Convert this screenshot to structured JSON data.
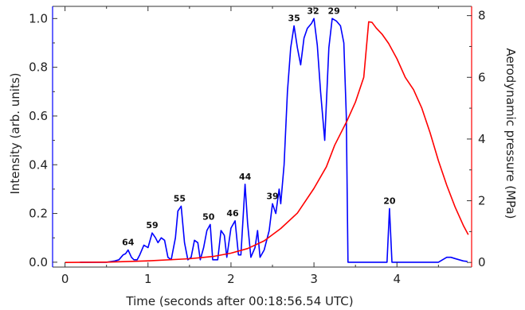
{
  "chart_data": {
    "type": "line",
    "xlabel": "Time (seconds after 00:18:56.54 UTC)",
    "ylabel_left": "Intensity (arb. units)",
    "ylabel_right": "Aerodynamic pressure (MPa)",
    "xlim": [
      -0.15,
      4.9
    ],
    "ylim_left": [
      -0.02,
      1.05
    ],
    "ylim_right": [
      -0.15,
      8.3
    ],
    "x_ticks": [
      0,
      1,
      2,
      3,
      4
    ],
    "x_minor_ticks": [
      0.5,
      1.5,
      2.5,
      3.5,
      4.5
    ],
    "y_left_ticks": [
      0.0,
      0.2,
      0.4,
      0.6,
      0.8,
      1.0
    ],
    "y_left_tick_labels": [
      "0.0",
      "0.2",
      "0.4",
      "0.6",
      "0.8",
      "1.0"
    ],
    "y_right_ticks": [
      0,
      2,
      4,
      6,
      8
    ],
    "y_right_tick_labels": [
      "0",
      "2",
      "4",
      "6",
      "8"
    ],
    "grid": false,
    "series": [
      {
        "axis": "left",
        "color": "#0000ff",
        "points": [
          [
            0.18,
            0.0
          ],
          [
            0.5,
            0.0
          ],
          [
            0.6,
            0.005
          ],
          [
            0.65,
            0.01
          ],
          [
            0.7,
            0.03
          ],
          [
            0.73,
            0.035
          ],
          [
            0.76,
            0.05
          ],
          [
            0.8,
            0.02
          ],
          [
            0.83,
            0.01
          ],
          [
            0.87,
            0.01
          ],
          [
            0.9,
            0.03
          ],
          [
            0.95,
            0.07
          ],
          [
            1.0,
            0.06
          ],
          [
            1.05,
            0.12
          ],
          [
            1.09,
            0.1
          ],
          [
            1.12,
            0.08
          ],
          [
            1.16,
            0.1
          ],
          [
            1.2,
            0.09
          ],
          [
            1.24,
            0.02
          ],
          [
            1.28,
            0.01
          ],
          [
            1.33,
            0.1
          ],
          [
            1.36,
            0.21
          ],
          [
            1.4,
            0.23
          ],
          [
            1.44,
            0.08
          ],
          [
            1.48,
            0.01
          ],
          [
            1.52,
            0.02
          ],
          [
            1.56,
            0.09
          ],
          [
            1.6,
            0.08
          ],
          [
            1.63,
            0.01
          ],
          [
            1.67,
            0.06
          ],
          [
            1.71,
            0.13
          ],
          [
            1.75,
            0.155
          ],
          [
            1.78,
            0.01
          ],
          [
            1.84,
            0.01
          ],
          [
            1.88,
            0.13
          ],
          [
            1.92,
            0.11
          ],
          [
            1.95,
            0.02
          ],
          [
            2.0,
            0.14
          ],
          [
            2.05,
            0.17
          ],
          [
            2.09,
            0.03
          ],
          [
            2.12,
            0.03
          ],
          [
            2.17,
            0.32
          ],
          [
            2.2,
            0.16
          ],
          [
            2.24,
            0.02
          ],
          [
            2.29,
            0.06
          ],
          [
            2.32,
            0.13
          ],
          [
            2.35,
            0.02
          ],
          [
            2.4,
            0.05
          ],
          [
            2.46,
            0.13
          ],
          [
            2.5,
            0.24
          ],
          [
            2.54,
            0.2
          ],
          [
            2.58,
            0.3
          ],
          [
            2.6,
            0.24
          ],
          [
            2.64,
            0.4
          ],
          [
            2.68,
            0.7
          ],
          [
            2.72,
            0.88
          ],
          [
            2.76,
            0.97
          ],
          [
            2.8,
            0.88
          ],
          [
            2.84,
            0.81
          ],
          [
            2.88,
            0.92
          ],
          [
            2.92,
            0.96
          ],
          [
            2.97,
            0.98
          ],
          [
            3.0,
            1.0
          ],
          [
            3.04,
            0.89
          ],
          [
            3.08,
            0.7
          ],
          [
            3.13,
            0.5
          ],
          [
            3.18,
            0.88
          ],
          [
            3.22,
            1.0
          ],
          [
            3.27,
            0.99
          ],
          [
            3.32,
            0.97
          ],
          [
            3.36,
            0.9
          ],
          [
            3.39,
            0.6
          ],
          [
            3.41,
            0.0
          ],
          [
            3.88,
            0.0
          ],
          [
            3.91,
            0.22
          ],
          [
            3.94,
            0.0
          ],
          [
            4.5,
            0.0
          ],
          [
            4.55,
            0.01
          ],
          [
            4.6,
            0.02
          ],
          [
            4.65,
            0.02
          ],
          [
            4.7,
            0.015
          ],
          [
            4.8,
            0.005
          ],
          [
            4.85,
            0.003
          ]
        ]
      },
      {
        "axis": "right",
        "color": "#ff0000",
        "points": [
          [
            0.0,
            0.0
          ],
          [
            0.5,
            0.01
          ],
          [
            1.0,
            0.05
          ],
          [
            1.5,
            0.12
          ],
          [
            1.8,
            0.2
          ],
          [
            2.0,
            0.3
          ],
          [
            2.2,
            0.45
          ],
          [
            2.4,
            0.7
          ],
          [
            2.6,
            1.1
          ],
          [
            2.8,
            1.6
          ],
          [
            3.0,
            2.4
          ],
          [
            3.15,
            3.1
          ],
          [
            3.25,
            3.8
          ],
          [
            3.4,
            4.6
          ],
          [
            3.5,
            5.2
          ],
          [
            3.6,
            6.0
          ],
          [
            3.66,
            7.8
          ],
          [
            3.7,
            7.78
          ],
          [
            3.75,
            7.6
          ],
          [
            3.82,
            7.4
          ],
          [
            3.9,
            7.1
          ],
          [
            4.0,
            6.6
          ],
          [
            4.1,
            6.0
          ],
          [
            4.2,
            5.6
          ],
          [
            4.3,
            5.0
          ],
          [
            4.4,
            4.2
          ],
          [
            4.5,
            3.3
          ],
          [
            4.6,
            2.5
          ],
          [
            4.7,
            1.8
          ],
          [
            4.8,
            1.2
          ],
          [
            4.86,
            0.9
          ]
        ]
      }
    ],
    "annotations": [
      {
        "text": "64",
        "x": 0.76,
        "y": 0.05
      },
      {
        "text": "59",
        "x": 1.05,
        "y": 0.12
      },
      {
        "text": "55",
        "x": 1.38,
        "y": 0.23
      },
      {
        "text": "50",
        "x": 1.73,
        "y": 0.155
      },
      {
        "text": "46",
        "x": 2.02,
        "y": 0.17
      },
      {
        "text": "44",
        "x": 2.17,
        "y": 0.32
      },
      {
        "text": "39",
        "x": 2.5,
        "y": 0.24
      },
      {
        "text": "35",
        "x": 2.76,
        "y": 0.97
      },
      {
        "text": "32",
        "x": 2.99,
        "y": 1.0
      },
      {
        "text": "29",
        "x": 3.24,
        "y": 1.0
      },
      {
        "text": "20",
        "x": 3.91,
        "y": 0.22
      }
    ]
  }
}
